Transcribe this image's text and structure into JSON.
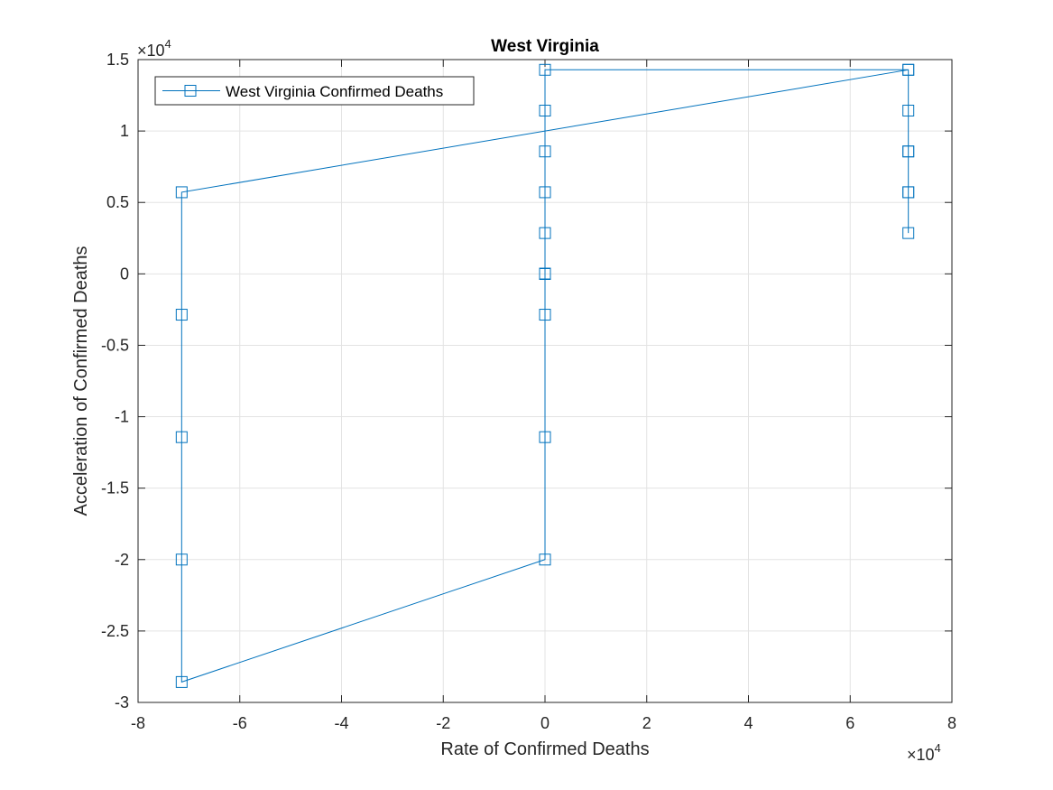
{
  "chart_data": {
    "type": "line",
    "title": "West Virginia",
    "xlabel": "Rate of Confirmed Deaths",
    "ylabel": "Acceleration of Confirmed Deaths",
    "xlim": [
      -80000,
      80000
    ],
    "ylim": [
      -30000,
      15000
    ],
    "x_ticks": [
      -80000,
      -60000,
      -40000,
      -20000,
      0,
      20000,
      40000,
      60000,
      80000
    ],
    "y_ticks": [
      -30000,
      -25000,
      -20000,
      -15000,
      -10000,
      -5000,
      0,
      5000,
      10000,
      15000
    ],
    "x_tick_labels": [
      "-8",
      "-6",
      "-4",
      "-2",
      "0",
      "2",
      "4",
      "6",
      "8"
    ],
    "y_tick_labels": [
      "-3",
      "-2.5",
      "-2",
      "-1.5",
      "-1",
      "-0.5",
      "0",
      "0.5",
      "1",
      "1.5"
    ],
    "x_exponent": "4",
    "y_exponent": "4",
    "exponent_base": "×10",
    "grid": true,
    "legend_position": "top-left",
    "series_color": "#0072BD",
    "series": [
      {
        "name": "West Virginia Confirmed Deaths",
        "marker": "square",
        "points": [
          [
            0,
            0
          ],
          [
            0,
            0
          ],
          [
            0,
            0
          ],
          [
            0,
            0
          ],
          [
            0,
            0
          ],
          [
            0,
            0
          ],
          [
            0,
            2857
          ],
          [
            0,
            5714
          ],
          [
            0,
            8571
          ],
          [
            0,
            11429
          ],
          [
            0,
            14286
          ],
          [
            71429,
            14286
          ],
          [
            71429,
            11429
          ],
          [
            71429,
            8571
          ],
          [
            71429,
            5714
          ],
          [
            71429,
            2857
          ],
          [
            71429,
            5714
          ],
          [
            71429,
            8571
          ],
          [
            71429,
            14286
          ],
          [
            -71429,
            5714
          ],
          [
            -71429,
            -2857
          ],
          [
            -71429,
            -11429
          ],
          [
            -71429,
            -20000
          ],
          [
            -71429,
            -28571
          ],
          [
            0,
            -20000
          ],
          [
            0,
            -11429
          ],
          [
            0,
            -2857
          ],
          [
            0,
            0
          ],
          [
            0,
            0
          ]
        ]
      }
    ]
  }
}
